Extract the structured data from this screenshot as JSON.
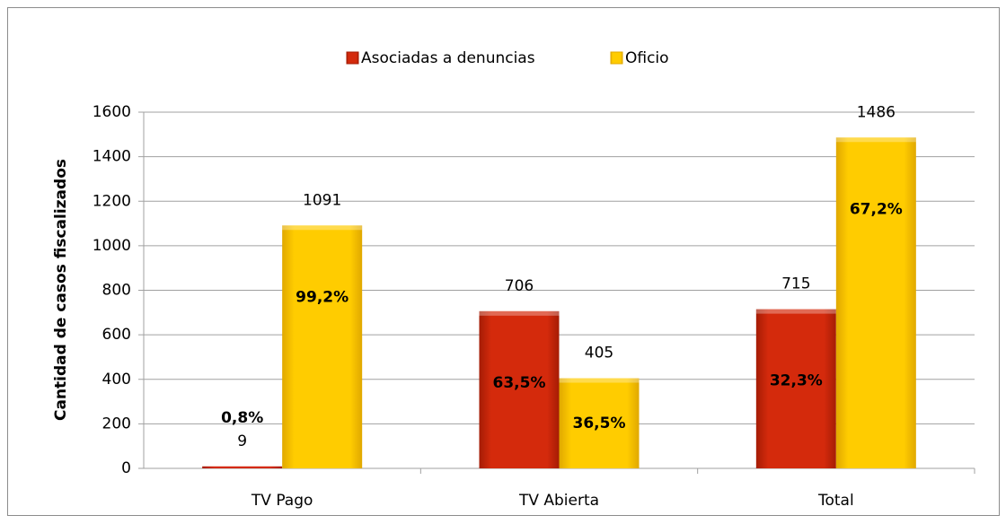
{
  "chart_data": {
    "type": "bar",
    "categories": [
      "TV Pago",
      "TV Abierta",
      "Total"
    ],
    "y_axis_label": "Cantidad de casos fiscalizados",
    "series": [
      {
        "name": "Asociadas a denuncias",
        "color": "#d42a0c",
        "values": [
          9,
          706,
          715
        ],
        "share_labels": [
          "0,8%",
          "63,5%",
          "32,3%"
        ]
      },
      {
        "name": "Oficio",
        "color": "#ffcc00",
        "values": [
          1091,
          405,
          1486
        ],
        "share_labels": [
          "99,2%",
          "36,5%",
          "67,2%"
        ]
      }
    ],
    "ylim": [
      0,
      1600
    ],
    "yticks": [
      0,
      200,
      400,
      600,
      800,
      1000,
      1200,
      1400,
      1600
    ],
    "grid": true,
    "legend": "top"
  }
}
